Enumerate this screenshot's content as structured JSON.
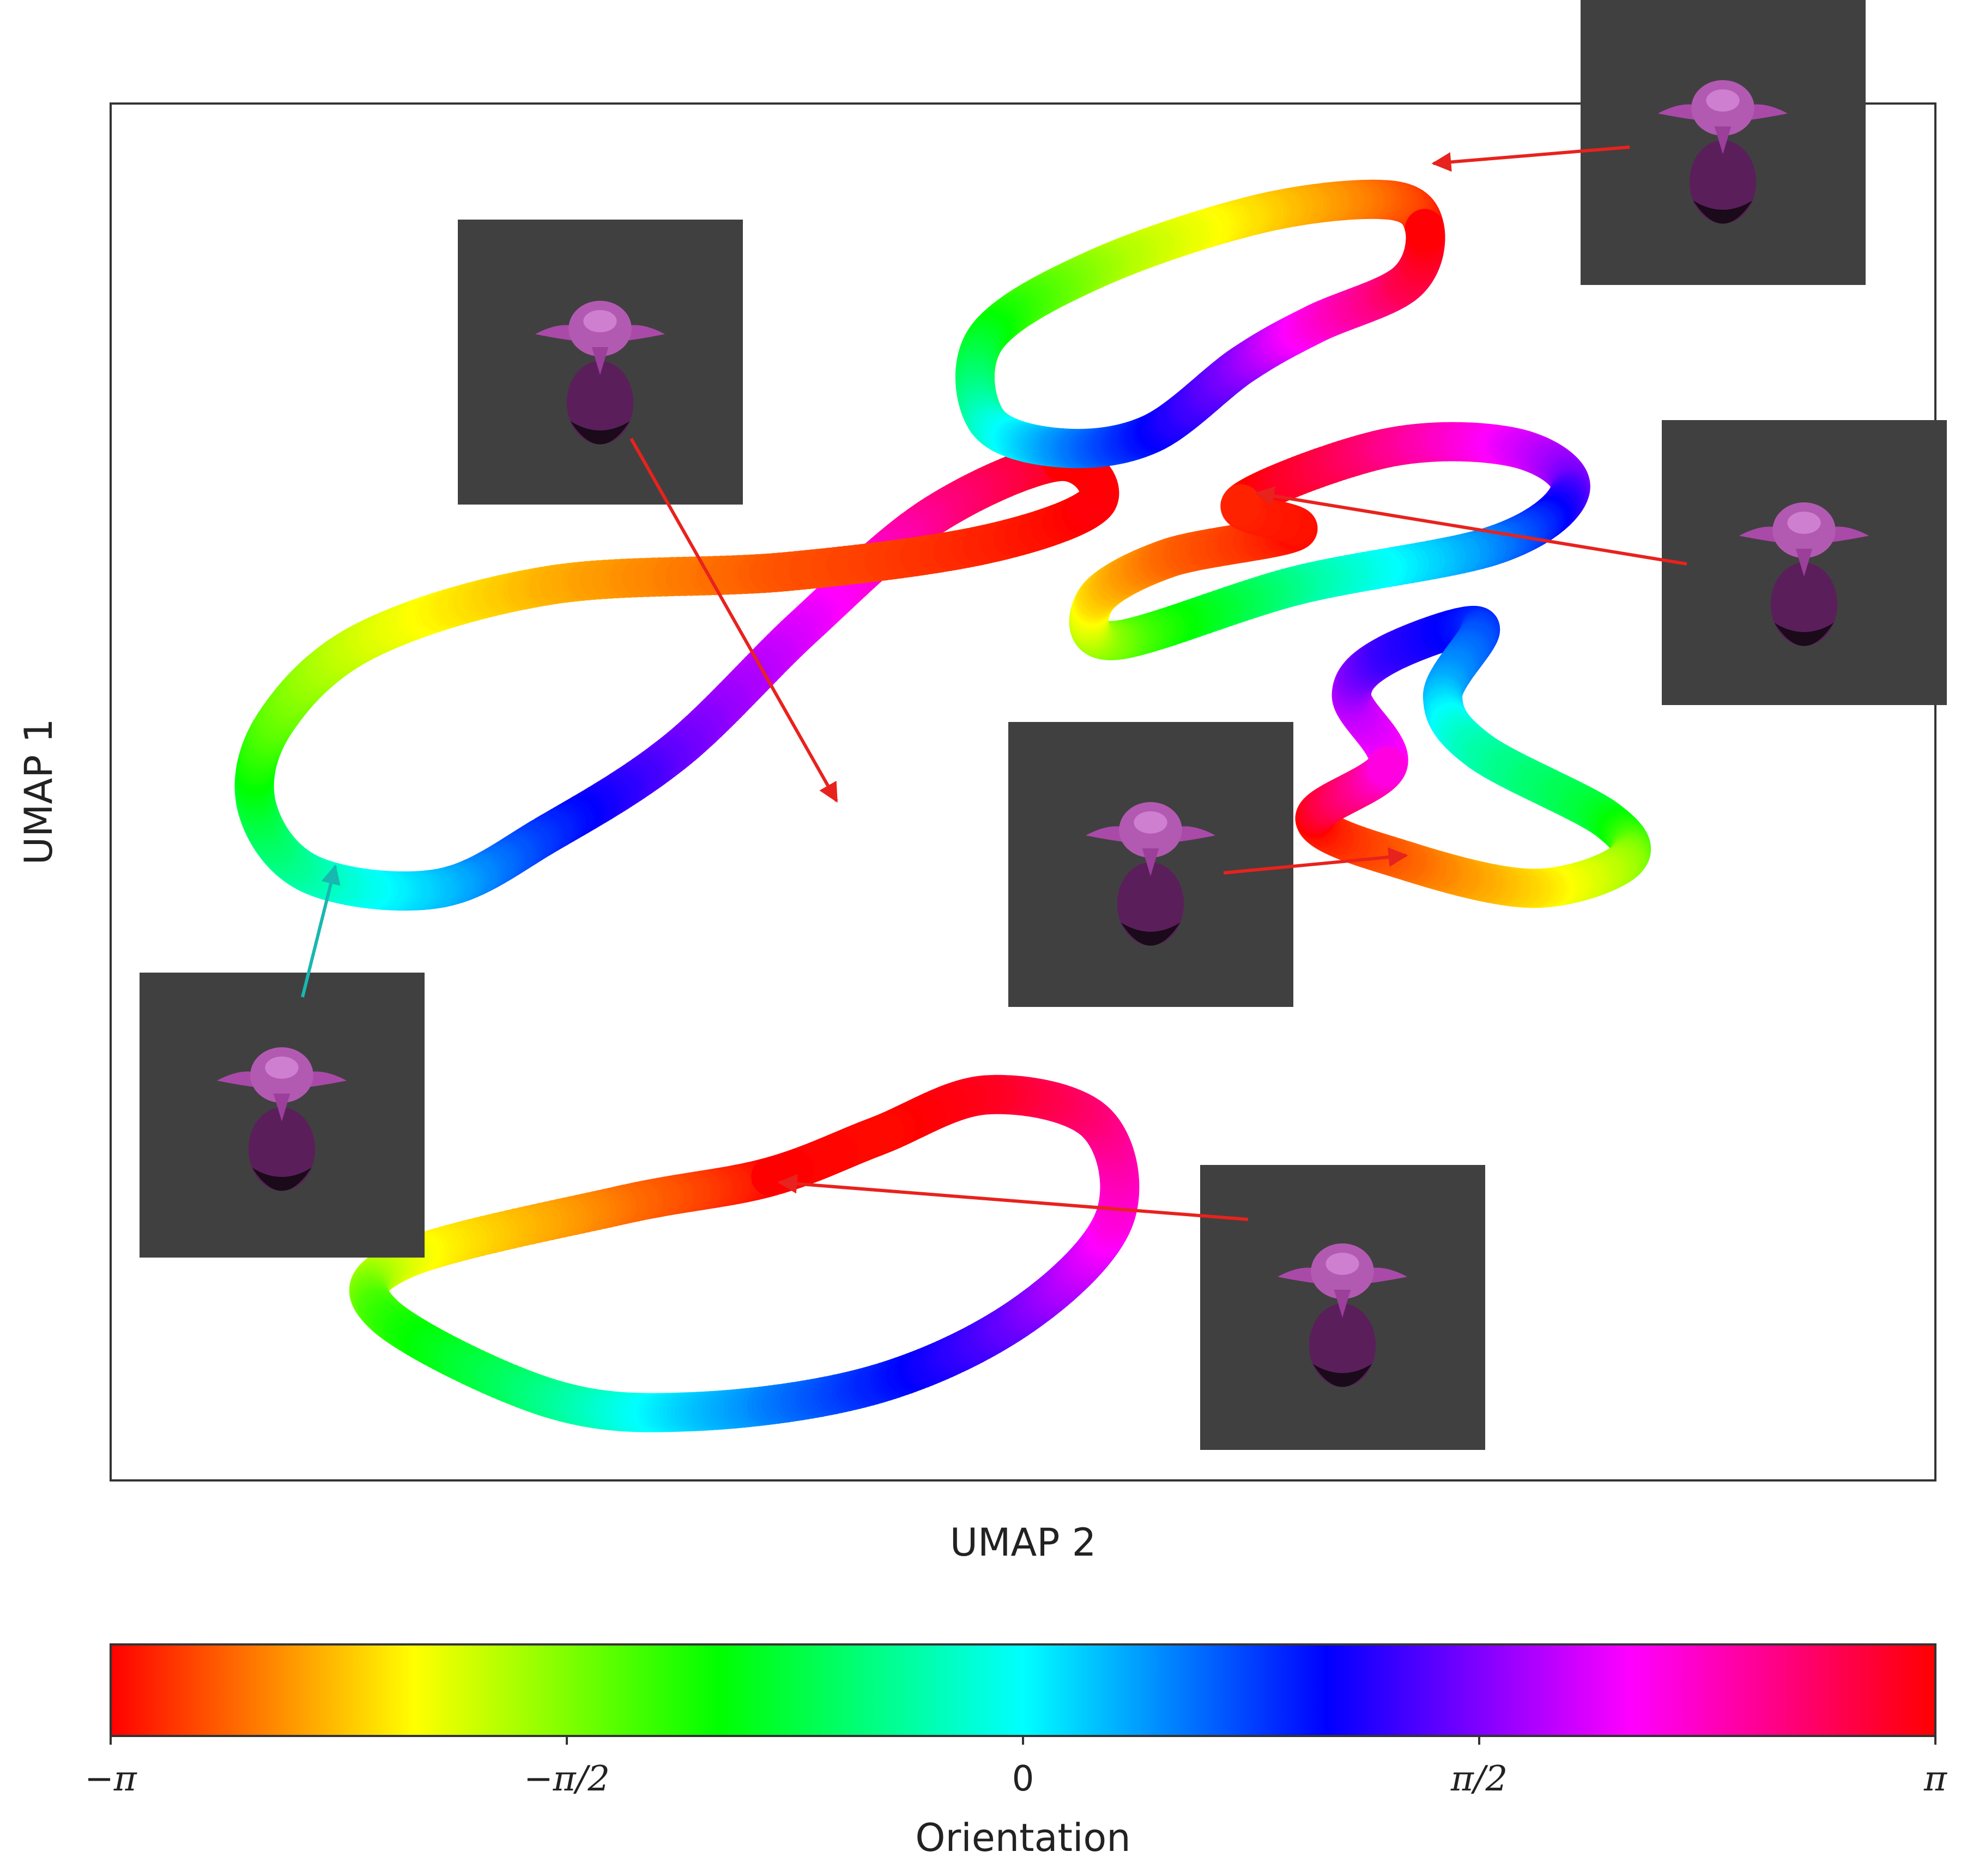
{
  "chart_data": {
    "type": "scatter",
    "title": "",
    "xlabel": "UMAP 2",
    "ylabel": "UMAP 1",
    "grid": false,
    "axis_ticks_shown": false,
    "color_encoding": "orientation (cyclic colormap, hsv)",
    "colorbar": {
      "label": "Orientation",
      "range": [
        -3.14159,
        3.14159
      ],
      "orientation": "horizontal",
      "placement": "below",
      "ticks": [
        {
          "value": -3.14159,
          "label": "−π"
        },
        {
          "value": -1.5708,
          "label": "−π/2"
        },
        {
          "value": 0,
          "label": "0"
        },
        {
          "value": 1.5708,
          "label": "π/2"
        },
        {
          "value": 3.14159,
          "label": "π"
        }
      ],
      "colors": [
        "#ff0000",
        "#ffff00",
        "#00ff00",
        "#00ffff",
        "#0000ff",
        "#ff00ff",
        "#ff0000"
      ]
    },
    "series": [
      {
        "loop": 1,
        "points": [
          [
            0.52,
            0.74
          ],
          [
            0.45,
            0.7
          ],
          [
            0.38,
            0.62
          ],
          [
            0.31,
            0.53
          ],
          [
            0.24,
            0.47
          ],
          [
            0.18,
            0.43
          ],
          [
            0.11,
            0.44
          ],
          [
            0.08,
            0.49
          ],
          [
            0.09,
            0.55
          ],
          [
            0.14,
            0.61
          ],
          [
            0.24,
            0.65
          ],
          [
            0.37,
            0.66
          ],
          [
            0.48,
            0.68
          ],
          [
            0.54,
            0.71
          ]
        ],
        "orientation": [
          3.14,
          2.6,
          2.0,
          1.5,
          0.9,
          0.3,
          -0.3,
          -0.8,
          -1.4,
          -1.9,
          -2.4,
          -2.8,
          -3.0,
          3.1
        ]
      },
      {
        "loop": 2,
        "points": [
          [
            0.72,
            0.91
          ],
          [
            0.7,
            0.93
          ],
          [
            0.63,
            0.92
          ],
          [
            0.54,
            0.88
          ],
          [
            0.48,
            0.83
          ],
          [
            0.48,
            0.77
          ],
          [
            0.52,
            0.75
          ],
          [
            0.57,
            0.76
          ],
          [
            0.62,
            0.81
          ],
          [
            0.66,
            0.84
          ],
          [
            0.71,
            0.87
          ]
        ],
        "orientation": [
          3.14,
          -2.8,
          -2.3,
          -1.7,
          -1.0,
          -0.3,
          0.4,
          1.0,
          1.6,
          2.2,
          2.8
        ]
      },
      {
        "loop": 3,
        "points": [
          [
            0.62,
            0.71
          ],
          [
            0.7,
            0.75
          ],
          [
            0.77,
            0.75
          ],
          [
            0.8,
            0.72
          ],
          [
            0.76,
            0.68
          ],
          [
            0.65,
            0.65
          ],
          [
            0.55,
            0.61
          ],
          [
            0.54,
            0.64
          ],
          [
            0.58,
            0.67
          ],
          [
            0.65,
            0.69
          ]
        ],
        "orientation": [
          -3.0,
          2.6,
          2.0,
          1.5,
          0.6,
          -0.4,
          -1.5,
          -2.2,
          -2.7,
          -3.1
        ]
      },
      {
        "loop": 4,
        "points": [
          [
            0.7,
            0.52
          ],
          [
            0.68,
            0.57
          ],
          [
            0.7,
            0.6
          ],
          [
            0.75,
            0.62
          ],
          [
            0.73,
            0.57
          ],
          [
            0.75,
            0.53
          ],
          [
            0.82,
            0.48
          ],
          [
            0.83,
            0.45
          ],
          [
            0.78,
            0.43
          ],
          [
            0.71,
            0.45
          ],
          [
            0.66,
            0.48
          ]
        ],
        "orientation": [
          2.2,
          1.8,
          1.3,
          0.9,
          0.3,
          -0.3,
          -0.9,
          -1.6,
          -2.2,
          -2.7,
          -3.1
        ]
      },
      {
        "loop": 5,
        "points": [
          [
            0.36,
            0.22
          ],
          [
            0.28,
            0.2
          ],
          [
            0.16,
            0.16
          ],
          [
            0.15,
            0.12
          ],
          [
            0.24,
            0.06
          ],
          [
            0.32,
            0.05
          ],
          [
            0.42,
            0.07
          ],
          [
            0.5,
            0.12
          ],
          [
            0.55,
            0.19
          ],
          [
            0.54,
            0.26
          ],
          [
            0.48,
            0.28
          ],
          [
            0.42,
            0.25
          ]
        ],
        "orientation": [
          3.14,
          -2.7,
          -2.0,
          -1.3,
          -0.5,
          0.2,
          0.9,
          1.5,
          2.2,
          2.6,
          3.0,
          -3.1
        ]
      }
    ],
    "xlim": [
      0,
      1
    ],
    "ylim": [
      0,
      1
    ]
  },
  "annotations": [
    {
      "name": "render-top-right",
      "arrow_color": "#e8221d",
      "target_loop": 2
    },
    {
      "name": "render-top-center",
      "arrow_color": "#e8221d",
      "target_loop": 1
    },
    {
      "name": "render-right",
      "arrow_color": "#e8221d",
      "target_loop": 2
    },
    {
      "name": "render-center",
      "arrow_color": "#e8221d",
      "target_loop": 4
    },
    {
      "name": "render-left",
      "arrow_color": "#17b8b0",
      "target_loop": 1
    },
    {
      "name": "render-bottom",
      "arrow_color": "#e8221d",
      "target_loop": 5
    }
  ]
}
